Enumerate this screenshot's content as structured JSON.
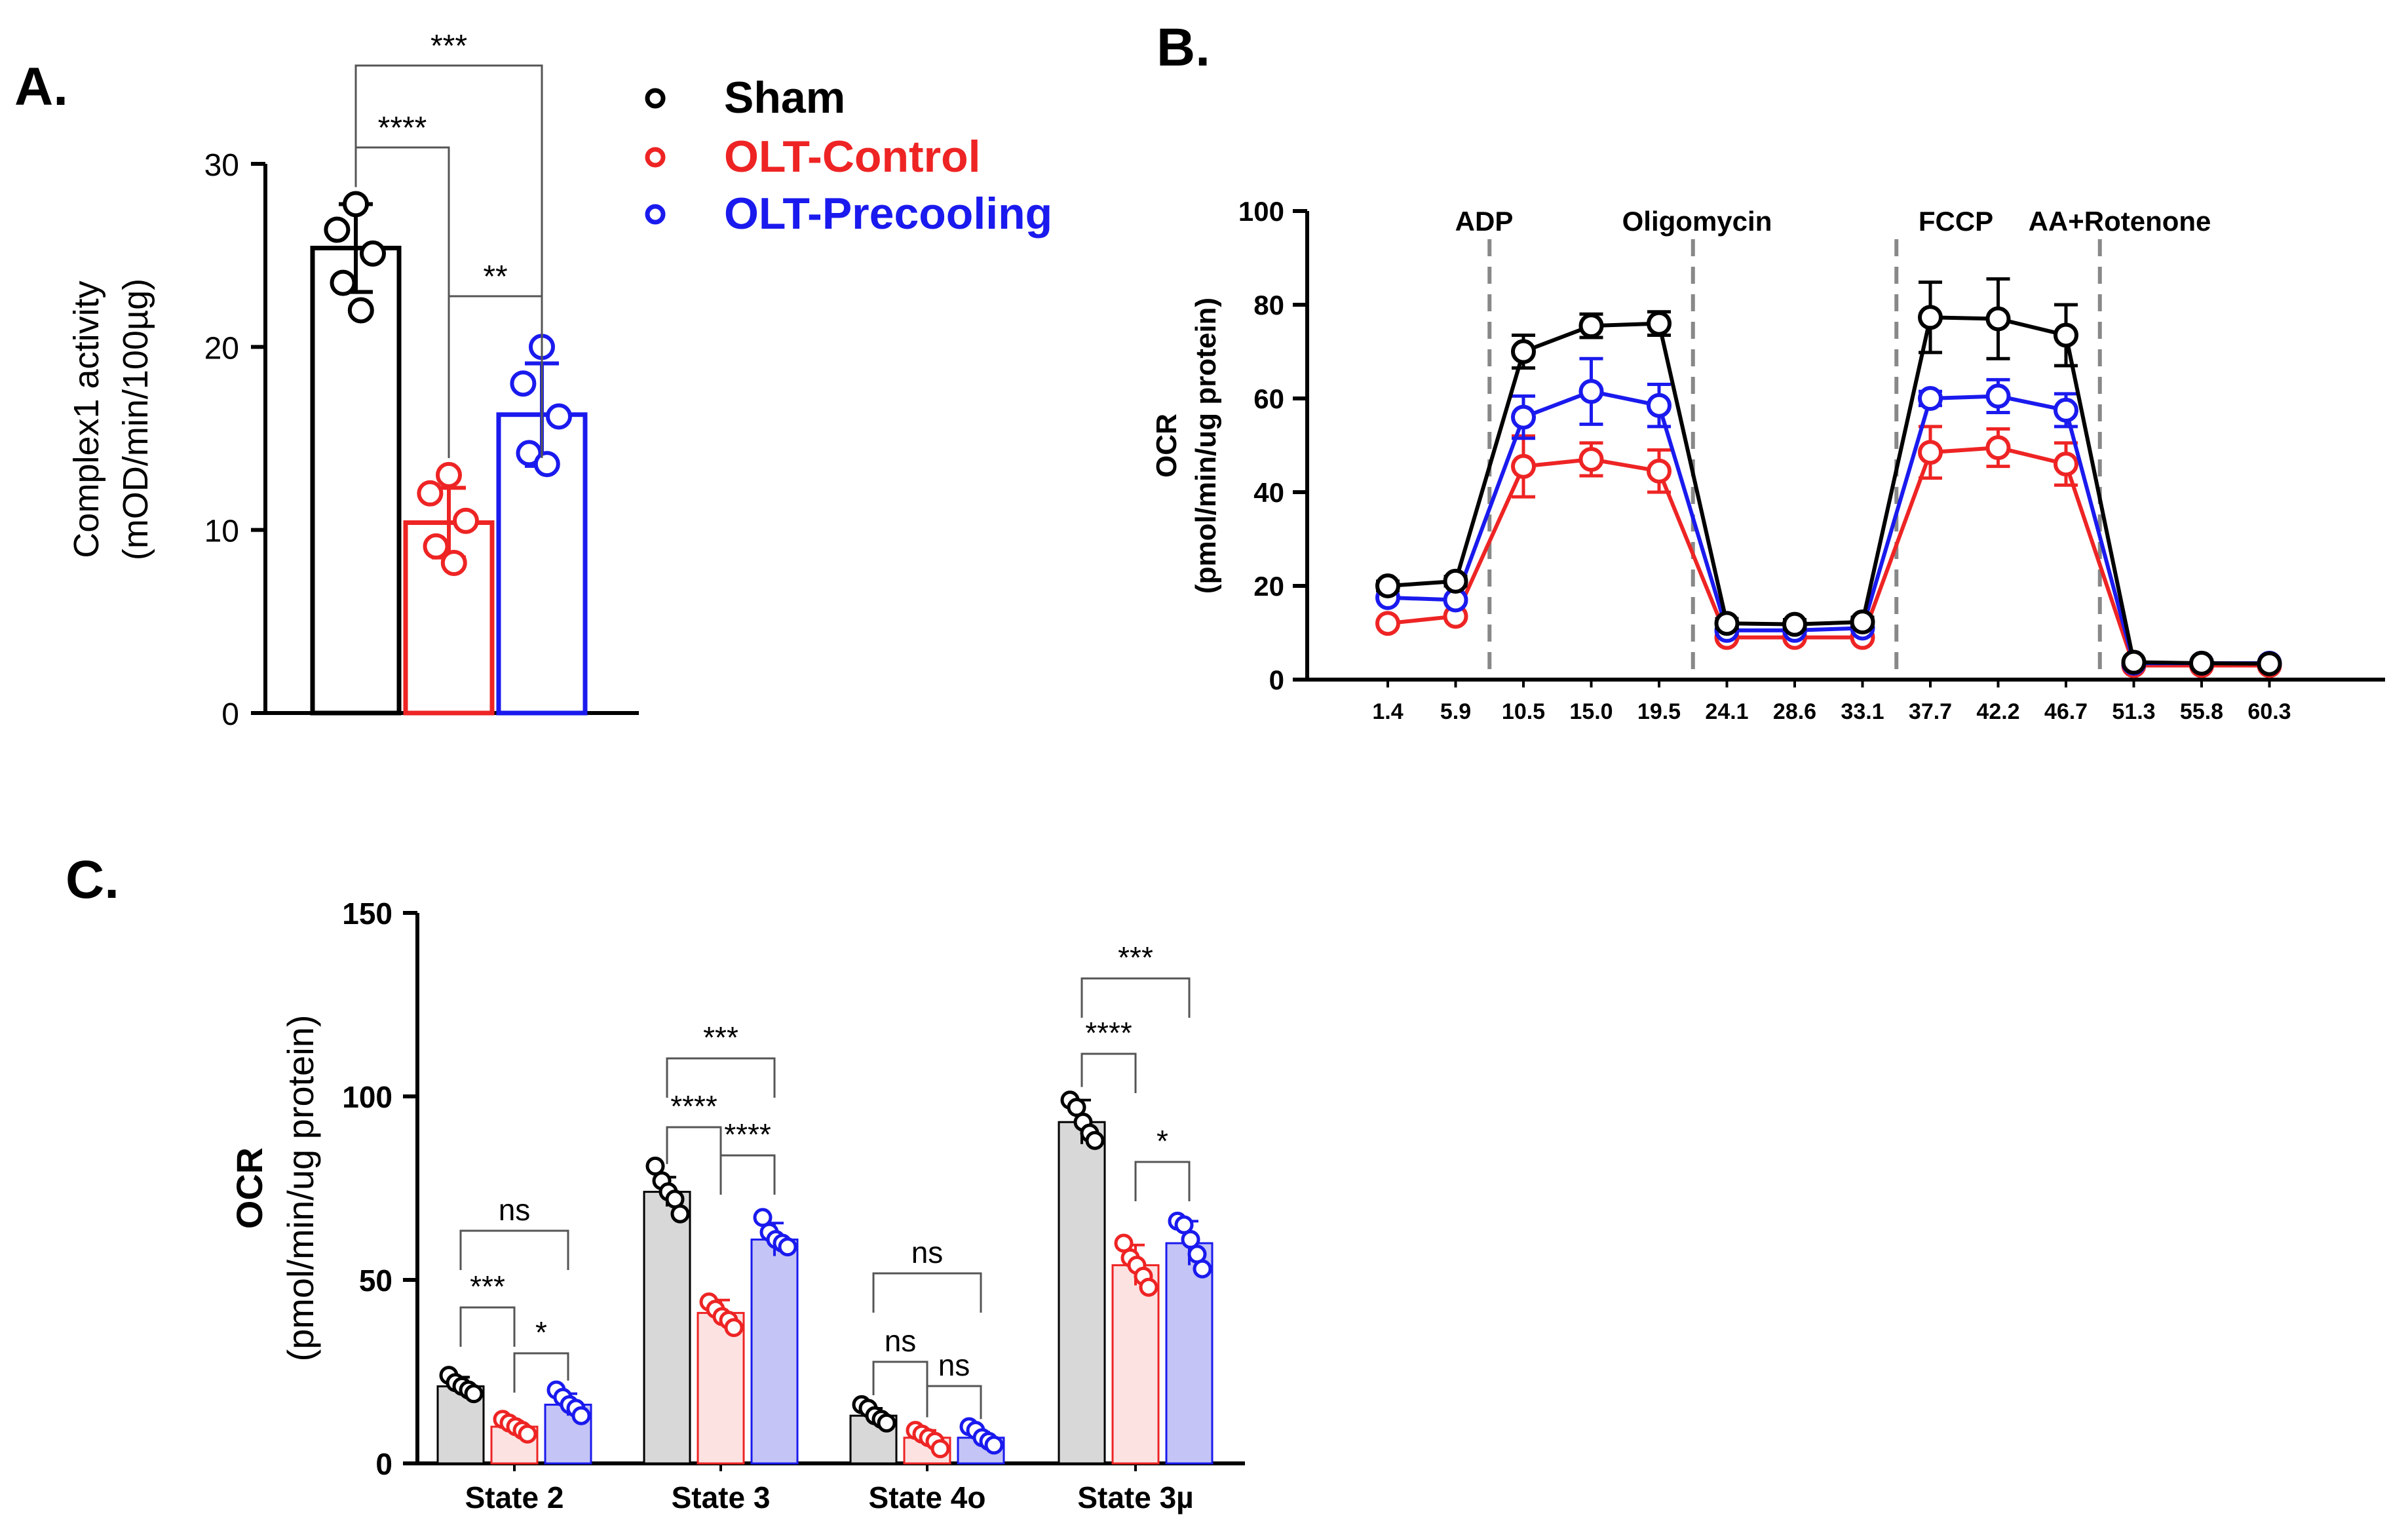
{
  "colors": {
    "sham": "#000000",
    "olt_control": "#ee2424",
    "olt_precooling": "#1a1aee",
    "marker_line": "#888888"
  },
  "legend": [
    {
      "label": "Sham",
      "color": "#000000"
    },
    {
      "label": "OLT-Control",
      "color": "#ee2424"
    },
    {
      "label": "OLT-Precooling",
      "color": "#1a1aee"
    }
  ],
  "chart_data": [
    {
      "panel": "A.",
      "type": "bar",
      "ylabel_line1": "Complex1 activity",
      "ylabel_line2": "(mOD/min/100µg)",
      "ylim": [
        0,
        30
      ],
      "yticks": [
        0,
        10,
        20,
        30
      ],
      "groups": [
        {
          "name": "Sham",
          "mean": 25.4,
          "sd": 2.4,
          "points": [
            27.8,
            26.4,
            25.1,
            23.5,
            22.0
          ]
        },
        {
          "name": "OLT-Control",
          "mean": 10.4,
          "sd": 1.9,
          "points": [
            13.0,
            12.0,
            10.5,
            9.1,
            8.2
          ]
        },
        {
          "name": "OLT-Precooling",
          "mean": 16.3,
          "sd": 2.8,
          "points": [
            20.0,
            18.0,
            16.2,
            14.2,
            13.6
          ]
        }
      ],
      "comparisons": [
        {
          "from": 0,
          "to": 2,
          "label": "***"
        },
        {
          "from": 0,
          "to": 1,
          "label": "****"
        },
        {
          "from": 1,
          "to": 2,
          "label": "**"
        }
      ]
    },
    {
      "panel": "B.",
      "type": "line",
      "ylabel_line1": "OCR",
      "ylabel_line2": "(pmol/min/ug protein)",
      "ylim": [
        0,
        100
      ],
      "yticks": [
        0,
        20,
        40,
        60,
        80,
        100
      ],
      "x": [
        "1.4",
        "5.9",
        "10.5",
        "15.0",
        "19.5",
        "24.1",
        "28.6",
        "33.1",
        "37.7",
        "42.2",
        "46.7",
        "51.3",
        "55.8",
        "60.3"
      ],
      "injections": [
        {
          "label": "ADP",
          "after_index": 1
        },
        {
          "label": "Oligomycin",
          "after_index": 4
        },
        {
          "label": "FCCP",
          "after_index": 7
        },
        {
          "label": "AA+Rotenone",
          "after_index": 10
        }
      ],
      "series": [
        {
          "name": "OLT-Control",
          "values": [
            12,
            13.5,
            45.5,
            47,
            44.5,
            9,
            9,
            9,
            48.5,
            49.5,
            46,
            3,
            3,
            3
          ],
          "errors": [
            0,
            0,
            6.5,
            3.5,
            4.5,
            0,
            0,
            0,
            5.5,
            4,
            4.5,
            0,
            0,
            0
          ]
        },
        {
          "name": "OLT-Precooling",
          "values": [
            17.5,
            17,
            56,
            61.5,
            58.5,
            10.5,
            10.5,
            11,
            60,
            60.5,
            57.5,
            3.5,
            3.5,
            3.5
          ],
          "errors": [
            0,
            0,
            4.5,
            7,
            4.5,
            0,
            0,
            0,
            1.5,
            3.5,
            3.5,
            0,
            0,
            0
          ]
        },
        {
          "name": "Sham",
          "values": [
            20,
            21,
            70,
            75.5,
            76,
            12,
            11.8,
            12.3,
            77.3,
            77,
            73.5,
            3.7,
            3.5,
            3.4
          ],
          "errors": [
            1,
            1,
            3.5,
            2.5,
            2.5,
            1,
            1,
            1,
            7.5,
            8.5,
            6.5,
            0.5,
            0.5,
            0.5
          ]
        }
      ]
    },
    {
      "panel": "C.",
      "type": "bar",
      "ylabel_line1": "OCR",
      "ylabel_line2": "(pmol/min/ug protein)",
      "ylim": [
        0,
        150
      ],
      "yticks": [
        0,
        50,
        100,
        150
      ],
      "categories": [
        "State 2",
        "State 3",
        "State 4o",
        "State 3µ"
      ],
      "series": [
        {
          "name": "Sham",
          "means": [
            21,
            74,
            13,
            93
          ],
          "sds": [
            2.5,
            4,
            2,
            6
          ],
          "points": [
            [
              24,
              22,
              21,
              20,
              19
            ],
            [
              81,
              77,
              74,
              72,
              68
            ],
            [
              16,
              15,
              13,
              12,
              11
            ],
            [
              99,
              97,
              93,
              90,
              88
            ]
          ]
        },
        {
          "name": "OLT-Control",
          "means": [
            10,
            41,
            7,
            54
          ],
          "sds": [
            1.5,
            3.5,
            2,
            5.5
          ],
          "points": [
            [
              12,
              11,
              10,
              9,
              8
            ],
            [
              44,
              42,
              40,
              39,
              37
            ],
            [
              9,
              8,
              7,
              6,
              4
            ],
            [
              60,
              56,
              54,
              51,
              48
            ]
          ]
        },
        {
          "name": "OLT-Precooling",
          "means": [
            16,
            61,
            7,
            60
          ],
          "sds": [
            3,
            4.5,
            1.5,
            6
          ],
          "points": [
            [
              20,
              18,
              16,
              15,
              13
            ],
            [
              67,
              63,
              61,
              60,
              59
            ],
            [
              10,
              9,
              7,
              6,
              5
            ],
            [
              66,
              65,
              61,
              57,
              53
            ]
          ]
        }
      ],
      "comparisons": [
        {
          "category": 0,
          "from": 0,
          "to": 2,
          "label": "ns"
        },
        {
          "category": 0,
          "from": 0,
          "to": 1,
          "label": "***"
        },
        {
          "category": 0,
          "from": 1,
          "to": 2,
          "label": "*"
        },
        {
          "category": 1,
          "from": 0,
          "to": 2,
          "label": "***"
        },
        {
          "category": 1,
          "from": 0,
          "to": 1,
          "label": "****"
        },
        {
          "category": 1,
          "from": 1,
          "to": 2,
          "label": "****"
        },
        {
          "category": 2,
          "from": 0,
          "to": 2,
          "label": "ns"
        },
        {
          "category": 2,
          "from": 0,
          "to": 1,
          "label": "ns"
        },
        {
          "category": 2,
          "from": 1,
          "to": 2,
          "label": "ns"
        },
        {
          "category": 3,
          "from": 0,
          "to": 2,
          "label": "***"
        },
        {
          "category": 3,
          "from": 0,
          "to": 1,
          "label": "****"
        },
        {
          "category": 3,
          "from": 1,
          "to": 2,
          "label": "*"
        }
      ]
    }
  ]
}
